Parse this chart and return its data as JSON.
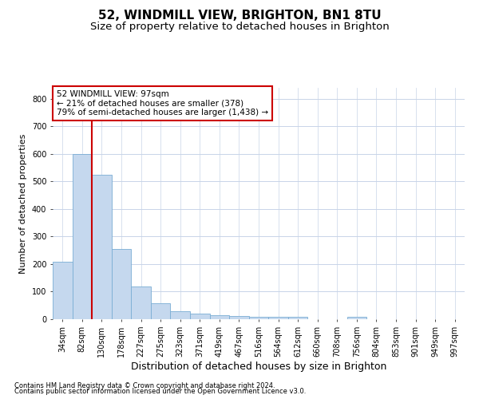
{
  "title1": "52, WINDMILL VIEW, BRIGHTON, BN1 8TU",
  "title2": "Size of property relative to detached houses in Brighton",
  "xlabel": "Distribution of detached houses by size in Brighton",
  "ylabel": "Number of detached properties",
  "footer1": "Contains HM Land Registry data © Crown copyright and database right 2024.",
  "footer2": "Contains public sector information licensed under the Open Government Licence v3.0.",
  "annotation_line1": "52 WINDMILL VIEW: 97sqm",
  "annotation_line2": "← 21% of detached houses are smaller (378)",
  "annotation_line3": "79% of semi-detached houses are larger (1,438) →",
  "bar_color": "#c5d8ee",
  "bar_edge_color": "#7aadd4",
  "red_line_color": "#cc0000",
  "annotation_box_color": "#cc0000",
  "background_color": "#ffffff",
  "grid_color": "#c8d4e8",
  "categories": [
    "34sqm",
    "82sqm",
    "130sqm",
    "178sqm",
    "227sqm",
    "275sqm",
    "323sqm",
    "371sqm",
    "419sqm",
    "467sqm",
    "516sqm",
    "564sqm",
    "612sqm",
    "660sqm",
    "708sqm",
    "756sqm",
    "804sqm",
    "853sqm",
    "901sqm",
    "949sqm",
    "997sqm"
  ],
  "values": [
    210,
    600,
    525,
    255,
    118,
    57,
    30,
    20,
    15,
    12,
    8,
    8,
    8,
    0,
    0,
    8,
    0,
    0,
    0,
    0,
    0
  ],
  "red_line_index": 1.5,
  "ylim": [
    0,
    840
  ],
  "yticks": [
    0,
    100,
    200,
    300,
    400,
    500,
    600,
    700,
    800
  ],
  "title1_fontsize": 11,
  "title2_fontsize": 9.5,
  "xlabel_fontsize": 9,
  "ylabel_fontsize": 8,
  "tick_fontsize": 7,
  "annotation_fontsize": 7.5,
  "footer_fontsize": 6
}
